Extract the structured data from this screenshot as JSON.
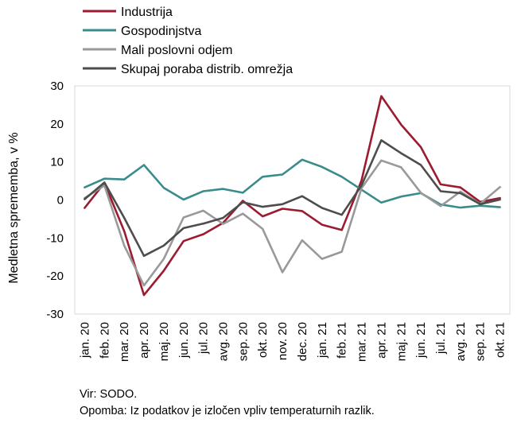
{
  "chart_data": {
    "type": "line",
    "ylabel": "Medletna sprememba, v %",
    "ylim": [
      -30,
      30
    ],
    "yticks": [
      30,
      20,
      10,
      0,
      -10,
      -20,
      -30
    ],
    "grid": false,
    "legend_position": "top-left",
    "categories": [
      "jan. 20",
      "feb. 20",
      "mar. 20",
      "apr. 20",
      "maj. 20",
      "jun. 20",
      "jul. 20",
      "avg. 20",
      "sep. 20",
      "okt. 20",
      "nov. 20",
      "dec. 20",
      "jan. 21",
      "feb. 21",
      "mar. 21",
      "apr. 21",
      "maj. 21",
      "jun. 21",
      "jul. 21",
      "avg. 21",
      "sep. 21",
      "okt. 21"
    ],
    "series": [
      {
        "name": "Industrija",
        "color": "#9b1b30",
        "values": [
          -2.1,
          4.5,
          -8.2,
          -25.0,
          -18.6,
          -10.8,
          -9.0,
          -6.0,
          -0.2,
          -4.3,
          -2.3,
          -2.9,
          -6.5,
          -7.9,
          5.1,
          27.3,
          19.8,
          13.9,
          4.1,
          3.3,
          -0.5,
          0.5
        ]
      },
      {
        "name": "Gospodinjstva",
        "color": "#3a8c8c",
        "values": [
          3.3,
          5.6,
          5.4,
          9.2,
          3.2,
          0.1,
          2.3,
          2.9,
          1.9,
          6.1,
          6.7,
          10.6,
          8.7,
          6.1,
          2.7,
          -0.7,
          0.9,
          1.8,
          -1.2,
          -2.0,
          -1.5,
          -1.9
        ]
      },
      {
        "name": "Mali poslovni odjem",
        "color": "#999999",
        "values": [
          0.5,
          3.8,
          -12.0,
          -22.5,
          -15.5,
          -4.6,
          -2.8,
          -6.3,
          -3.6,
          -7.6,
          -19.0,
          -10.6,
          -15.5,
          -13.6,
          3.1,
          10.4,
          8.6,
          1.9,
          -1.6,
          2.2,
          -1.0,
          3.4
        ]
      },
      {
        "name": "Skupaj poraba distrib. omrežja",
        "color": "#4d4d4d",
        "values": [
          0.2,
          4.6,
          -4.7,
          -14.7,
          -12.0,
          -7.4,
          -6.2,
          -4.7,
          -0.6,
          -1.8,
          -1.1,
          1.0,
          -2.1,
          -3.9,
          3.8,
          15.7,
          12.3,
          9.2,
          2.3,
          1.8,
          -1.1,
          0.1
        ]
      }
    ]
  },
  "footer": {
    "source": "Vir: SODO.",
    "note": "Opomba: Iz podatkov je izločen vpliv temperaturnih razlik."
  }
}
